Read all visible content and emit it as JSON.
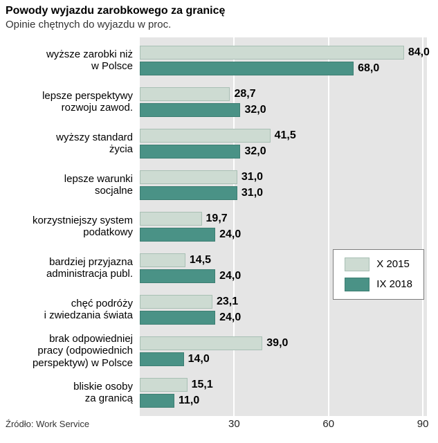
{
  "title": "Powody wyjazdu zarobkowego za granicę",
  "subtitle": "Opinie chętnych do wyjazdu w proc.",
  "source": "Źródło: Work Service",
  "colors": {
    "series_2015": "#cddbd2",
    "series_2018": "#4a9286",
    "plot_bg": "#e5e5e5",
    "grid": "#ffffff"
  },
  "chart_data": {
    "type": "bar",
    "orientation": "horizontal",
    "title": "Powody wyjazdu zarobkowego za granicę",
    "subtitle": "Opinie chętnych do wyjazdu w proc.",
    "categories": [
      "wyższe zarobki niż\nw Polsce",
      "lepsze perspektywy\nrozwoju zawod.",
      "wyższy standard\nżycia",
      "lepsze warunki\nsocjalne",
      "korzystniejszy system\npodatkowy",
      "bardziej przyjazna\nadministracja publ.",
      "chęć podróży\ni zwiedzania świata",
      "brak odpowiedniej\npracy (odpowiednich\nperspektyw) w Polsce",
      "bliskie osoby\nza granicą"
    ],
    "series": [
      {
        "name": "X 2015",
        "color_key": "series_2015",
        "values": [
          84.0,
          28.7,
          41.5,
          31.0,
          19.7,
          14.5,
          23.1,
          39.0,
          15.1
        ],
        "value_labels": [
          "84,0",
          "28,7",
          "41,5",
          "31,0",
          "19,7",
          "14,5",
          "23,1",
          "39,0",
          "15,1"
        ]
      },
      {
        "name": "IX 2018",
        "color_key": "series_2018",
        "values": [
          68.0,
          32.0,
          32.0,
          31.0,
          24.0,
          24.0,
          24.0,
          14.0,
          11.0
        ],
        "value_labels": [
          "68,0",
          "32,0",
          "32,0",
          "31,0",
          "24,0",
          "24,0",
          "24,0",
          "14,0",
          "11,0"
        ]
      }
    ],
    "xlim": [
      0,
      90
    ],
    "xticks": [
      30,
      60,
      90
    ],
    "grid": true,
    "legend_position": "middle-right"
  }
}
